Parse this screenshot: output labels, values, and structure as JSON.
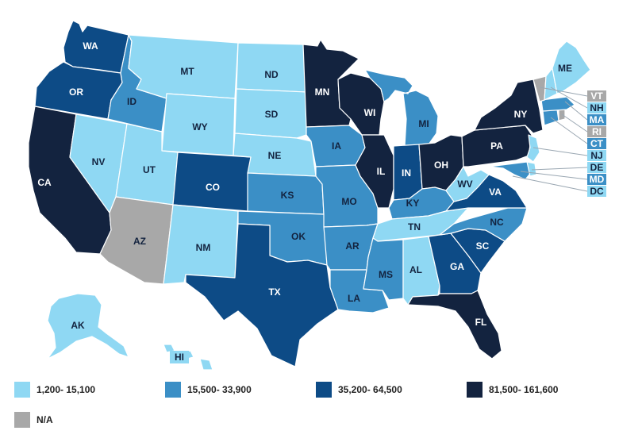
{
  "colors": {
    "c1": "#8fd8f3",
    "c2": "#3b8fc6",
    "c3": "#0d4b86",
    "c4": "#13233f",
    "na": "#a8a8a8",
    "label_dark": "#13233f",
    "label_light": "#ffffff"
  },
  "legend": [
    {
      "cls": "c1",
      "label": "1,200- 15,100"
    },
    {
      "cls": "c2",
      "label": "15,500- 33,900"
    },
    {
      "cls": "c3",
      "label": "35,200- 64,500"
    },
    {
      "cls": "c4",
      "label": "81,500- 161,600"
    },
    {
      "cls": "na",
      "label": "N/A"
    }
  ],
  "states": {
    "WA": {
      "label": "WA",
      "cls": "c3"
    },
    "OR": {
      "label": "OR",
      "cls": "c3"
    },
    "CA": {
      "label": "CA",
      "cls": "c4"
    },
    "NV": {
      "label": "NV",
      "cls": "c1"
    },
    "ID": {
      "label": "ID",
      "cls": "c2"
    },
    "MT": {
      "label": "MT",
      "cls": "c1"
    },
    "WY": {
      "label": "WY",
      "cls": "c1"
    },
    "UT": {
      "label": "UT",
      "cls": "c1"
    },
    "AZ": {
      "label": "AZ",
      "cls": "na"
    },
    "CO": {
      "label": "CO",
      "cls": "c3"
    },
    "NM": {
      "label": "NM",
      "cls": "c1"
    },
    "ND": {
      "label": "ND",
      "cls": "c1"
    },
    "SD": {
      "label": "SD",
      "cls": "c1"
    },
    "NE": {
      "label": "NE",
      "cls": "c1"
    },
    "KS": {
      "label": "KS",
      "cls": "c2"
    },
    "OK": {
      "label": "OK",
      "cls": "c2"
    },
    "TX": {
      "label": "TX",
      "cls": "c3"
    },
    "MN": {
      "label": "MN",
      "cls": "c4"
    },
    "IA": {
      "label": "IA",
      "cls": "c2"
    },
    "MO": {
      "label": "MO",
      "cls": "c2"
    },
    "AR": {
      "label": "AR",
      "cls": "c2"
    },
    "LA": {
      "label": "LA",
      "cls": "c2"
    },
    "WI": {
      "label": "WI",
      "cls": "c4"
    },
    "IL": {
      "label": "IL",
      "cls": "c4"
    },
    "MI": {
      "label": "MI",
      "cls": "c2"
    },
    "IN": {
      "label": "IN",
      "cls": "c3"
    },
    "OH": {
      "label": "OH",
      "cls": "c4"
    },
    "KY": {
      "label": "KY",
      "cls": "c2"
    },
    "TN": {
      "label": "TN",
      "cls": "c1"
    },
    "MS": {
      "label": "MS",
      "cls": "c2"
    },
    "AL": {
      "label": "AL",
      "cls": "c1"
    },
    "GA": {
      "label": "GA",
      "cls": "c3"
    },
    "FL": {
      "label": "FL",
      "cls": "c4"
    },
    "SC": {
      "label": "SC",
      "cls": "c3"
    },
    "NC": {
      "label": "NC",
      "cls": "c2"
    },
    "VA": {
      "label": "VA",
      "cls": "c3"
    },
    "WV": {
      "label": "WV",
      "cls": "c1"
    },
    "PA": {
      "label": "PA",
      "cls": "c4"
    },
    "NY": {
      "label": "NY",
      "cls": "c4"
    },
    "ME": {
      "label": "ME",
      "cls": "c1"
    },
    "AK": {
      "label": "AK",
      "cls": "c1"
    },
    "HI": {
      "label": "HI",
      "cls": "c1"
    }
  },
  "small_states": [
    {
      "label": "VT",
      "cls": "na"
    },
    {
      "label": "NH",
      "cls": "c1"
    },
    {
      "label": "MA",
      "cls": "c2"
    },
    {
      "label": "RI",
      "cls": "na"
    },
    {
      "label": "CT",
      "cls": "c2"
    },
    {
      "label": "NJ",
      "cls": "c1"
    },
    {
      "label": "DE",
      "cls": "c1"
    },
    {
      "label": "MD",
      "cls": "c2"
    },
    {
      "label": "DC",
      "cls": "c1"
    }
  ]
}
